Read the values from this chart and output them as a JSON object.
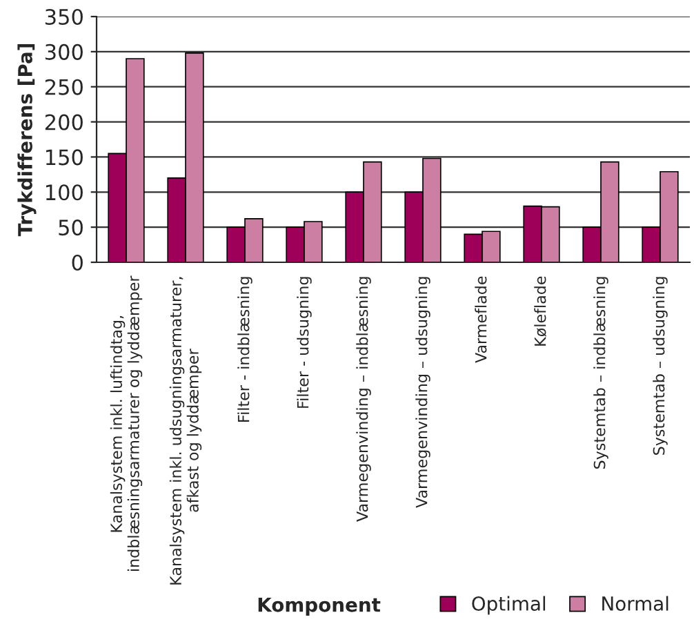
{
  "chart_data": {
    "type": "bar",
    "xlabel": "Komponent",
    "ylabel": "Trykdifferens [Pa]",
    "categories": [
      "Kanalsystem inkl. luftindtag,\nindblæsningsarmaturer og lyddæmper",
      "Kanalsystem inkl. udsugningsarmaturer,\nafkast og lyddæmper",
      "Filter - indblæsning",
      "Filter - udsugning",
      "Varmegenvinding – indblæsning",
      "Varmegenvinding – udsugning",
      "Varmeflade",
      "Køleflade",
      "Systemtab – indblæsning",
      "Systemtab – udsugning"
    ],
    "series": [
      {
        "name": "Optimal",
        "color": "#9e0059",
        "values": [
          155,
          120,
          50,
          50,
          100,
          100,
          40,
          80,
          50,
          50
        ]
      },
      {
        "name": "Normal",
        "color": "#cc7fa3",
        "values": [
          290,
          298,
          62,
          58,
          143,
          148,
          44,
          79,
          143,
          129
        ]
      }
    ],
    "ylim": [
      0,
      350
    ],
    "yticks": [
      0,
      50,
      100,
      150,
      200,
      250,
      300,
      350
    ],
    "grid": "y",
    "legend": "bottom right"
  }
}
